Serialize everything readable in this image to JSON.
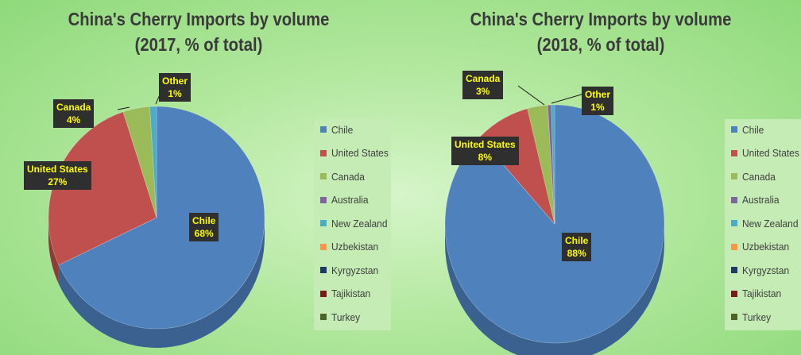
{
  "chart_data": [
    {
      "type": "pie",
      "title_line1": "China's Cherry Imports by volume",
      "title_line2": "(2017, % of total)",
      "legend": [
        "Chile",
        "United States",
        "Canada",
        "Australia",
        "New Zealand",
        "Uzbekistan",
        "Kyrgyzstan",
        "Tajikistan",
        "Turkey"
      ],
      "slices": [
        {
          "name": "Chile",
          "value": 68,
          "label": "68%",
          "color": "#4f81bd",
          "side": "#3a6190"
        },
        {
          "name": "United States",
          "value": 27,
          "label": "27%",
          "color": "#c0504d",
          "side": "#8f3b39"
        },
        {
          "name": "Canada",
          "value": 4,
          "label": "4%",
          "color": "#9bbb59",
          "side": "#748c43"
        },
        {
          "name": "New Zealand",
          "value": 1,
          "label": "1%",
          "color": "#4bacc6",
          "side": "#38819a"
        }
      ],
      "callouts": [
        {
          "name": "Chile",
          "value": "68%"
        },
        {
          "name": "United States",
          "value": "27%"
        },
        {
          "name": "Canada",
          "value": "4%"
        },
        {
          "name": "Other",
          "value": "1%"
        }
      ],
      "legend_placement": "right"
    },
    {
      "type": "pie",
      "title_line1": "China's Cherry Imports by volume",
      "title_line2": "(2018, % of total)",
      "legend": [
        "Chile",
        "United States",
        "Canada",
        "Australia",
        "New Zealand",
        "Uzbekistan",
        "Kyrgyzstan",
        "Tajikistan",
        "Turkey"
      ],
      "slices": [
        {
          "name": "Chile",
          "value": 88,
          "label": "88%",
          "color": "#4f81bd",
          "side": "#3a6190"
        },
        {
          "name": "United States",
          "value": 8,
          "label": "8%",
          "color": "#c0504d",
          "side": "#8f3b39"
        },
        {
          "name": "Canada",
          "value": 3,
          "label": "3%",
          "color": "#9bbb59",
          "side": "#748c43"
        },
        {
          "name": "Australia",
          "value": 0.5,
          "label": "",
          "color": "#8064a2",
          "side": "#604b7a"
        },
        {
          "name": "New Zealand",
          "value": 0.5,
          "label": "",
          "color": "#4bacc6",
          "side": "#38819a"
        }
      ],
      "callouts": [
        {
          "name": "Chile",
          "value": "88%"
        },
        {
          "name": "United States",
          "value": "8%"
        },
        {
          "name": "Canada",
          "value": "3%"
        },
        {
          "name": "Other",
          "value": "1%"
        }
      ],
      "legend_placement": "right"
    }
  ],
  "legend_colors": [
    "#4f81bd",
    "#c0504d",
    "#9bbb59",
    "#8064a2",
    "#4bacc6",
    "#f79646",
    "#1f3864",
    "#7b1c1c",
    "#4f6228"
  ]
}
